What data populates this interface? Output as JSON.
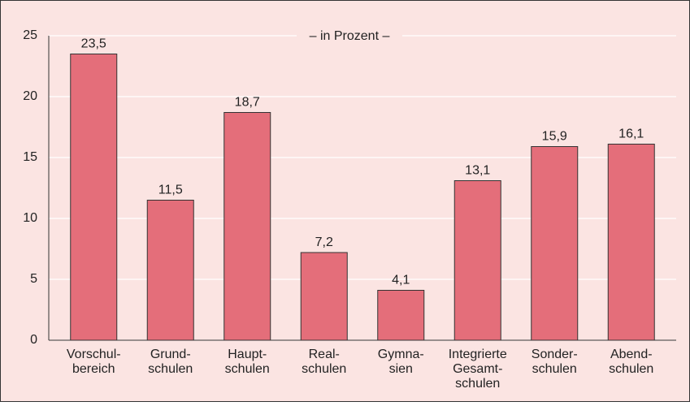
{
  "chart_data": {
    "type": "bar",
    "subtitle": "– in Prozent –",
    "categories": [
      [
        "Vorschul-",
        "bereich"
      ],
      [
        "Grund-",
        "schulen"
      ],
      [
        "Haupt-",
        "schulen"
      ],
      [
        "Real-",
        "schulen"
      ],
      [
        "Gymna-",
        "sien"
      ],
      [
        "Integrierte",
        "Gesamt-",
        "schulen"
      ],
      [
        "Sonder-",
        "schulen"
      ],
      [
        "Abend-",
        "schulen"
      ]
    ],
    "values": [
      23.5,
      11.5,
      18.7,
      7.2,
      4.1,
      13.1,
      15.9,
      16.1
    ],
    "value_labels": [
      "23,5",
      "11,5",
      "18,7",
      "7,2",
      "4,1",
      "13,1",
      "15,9",
      "16,1"
    ],
    "color": "#e46e7a",
    "ylim": [
      0,
      25
    ],
    "yticks": [
      0,
      5,
      10,
      15,
      20,
      25
    ],
    "grid": true
  }
}
